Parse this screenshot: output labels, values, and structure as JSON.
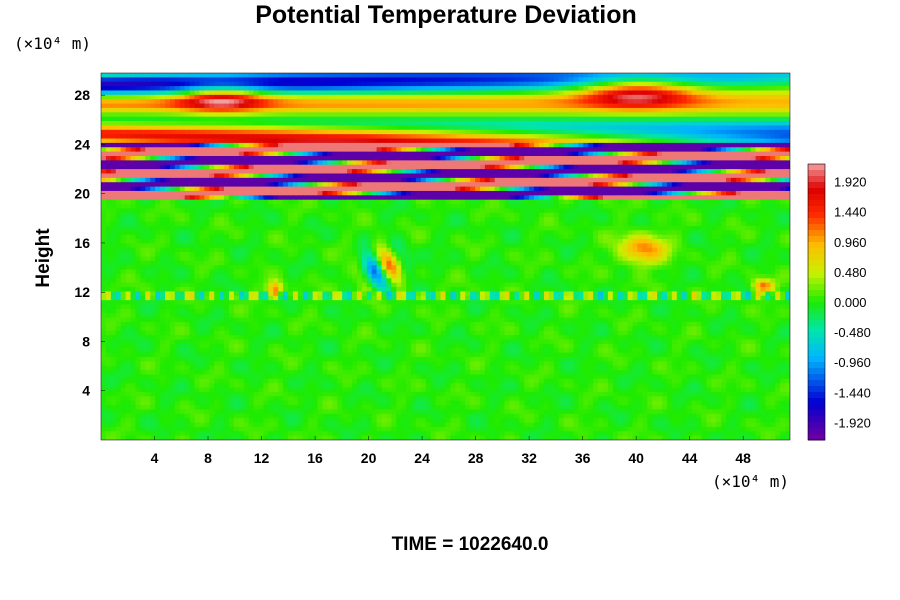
{
  "chart_data": {
    "type": "heatmap",
    "title": "Potential Temperature Deviation",
    "xlabel": "",
    "ylabel": "Height",
    "x_unit_label": "(×10⁴ m)",
    "y_unit_label": "(×10⁴ m)",
    "xlim": [
      0,
      51.5
    ],
    "ylim": [
      0,
      29.8
    ],
    "x_ticks": [
      4,
      8,
      12,
      16,
      20,
      24,
      28,
      32,
      36,
      40,
      44,
      48
    ],
    "y_ticks": [
      4,
      8,
      12,
      16,
      20,
      24,
      28
    ],
    "colorbar": {
      "min": -2.2,
      "max": 2.2,
      "ticks": [
        "1.920",
        "1.440",
        "0.960",
        "0.480",
        "0.000",
        "-0.480",
        "-0.960",
        "-1.440",
        "-1.920"
      ],
      "tick_values": [
        1.92,
        1.44,
        0.96,
        0.48,
        0.0,
        -0.48,
        -0.96,
        -1.44,
        -1.92
      ]
    },
    "field_description_regions": [
      {
        "y_range": [
          0,
          19.5
        ],
        "approx_value": 0.0
      },
      {
        "y_range": [
          20,
          24
        ],
        "approx_value": "alternating +1.92 / -1.92 bands"
      },
      {
        "y_range": [
          24,
          29.8
        ],
        "approx_value": "wave pattern between -1.9 and +1.9"
      }
    ],
    "footer": "TIME = 1022640.0",
    "colors": {
      "max": "#f4a0a0",
      "high": "#ff2000",
      "mid_high": "#ffb000",
      "zero": "#22ee00",
      "mid_low": "#00e0ff",
      "low": "#0000d0",
      "min": "#7000a0"
    }
  }
}
